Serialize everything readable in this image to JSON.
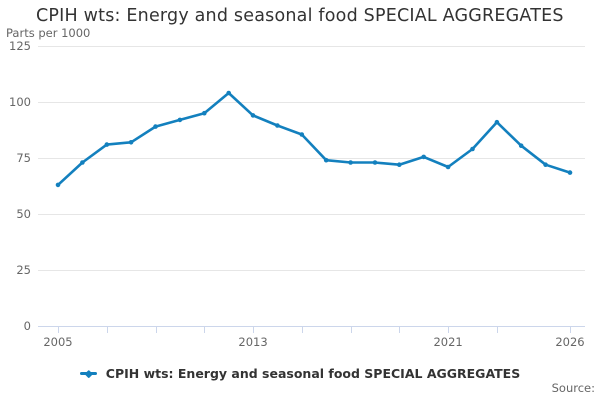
{
  "chart": {
    "title": "CPIH wts: Energy and seasonal food SPECIAL AGGREGATES",
    "y_axis_unit_label": "Parts per 1000",
    "legend": {
      "label": "CPIH wts: Energy and seasonal food SPECIAL AGGREGATES"
    },
    "source": {
      "label": "Source:"
    }
  },
  "chart_data": {
    "type": "line",
    "title": "CPIH wts: Energy and seasonal food SPECIAL AGGREGATES",
    "xlabel": "",
    "ylabel": "Parts per 1000",
    "series": [
      {
        "name": "CPIH wts: Energy and seasonal food SPECIAL AGGREGATES",
        "values": [
          63,
          73,
          81,
          82,
          89,
          92,
          95,
          104,
          94,
          89.5,
          85.5,
          74,
          73,
          73,
          72,
          75.5,
          71,
          79,
          91,
          80.5,
          72,
          68.5
        ]
      }
    ],
    "x": [
      2005,
      2006,
      2007,
      2008,
      2009,
      2010,
      2011,
      2012,
      2013,
      2014,
      2015,
      2016,
      2017,
      2018,
      2019,
      2020,
      2021,
      2022,
      2023,
      2024,
      2025,
      2026
    ],
    "xlim": [
      2005,
      2026
    ],
    "ylim": [
      0,
      125
    ],
    "y_ticks": [
      0,
      25,
      50,
      75,
      100,
      125
    ],
    "x_ticks": [
      2005,
      2007,
      2009,
      2011,
      2013,
      2015,
      2017,
      2019,
      2021,
      2023,
      2026
    ],
    "x_tick_labels": [
      2005,
      2013,
      2021,
      2026
    ],
    "grid": "horizontal",
    "legend_position": "bottom-center",
    "colors": {
      "line": "#1380be",
      "grid": "#e6e6e6",
      "axis": "#ccd6eb",
      "tick_label": "#666666",
      "title": "#333333"
    }
  }
}
